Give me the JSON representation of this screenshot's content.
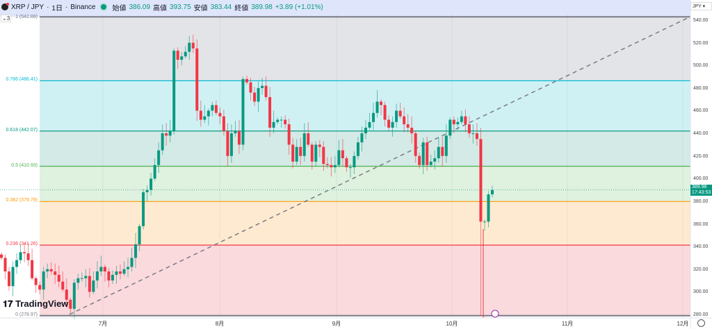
{
  "header": {
    "symbol": "XRP / JPY",
    "interval": "1日",
    "exchange": "Binance",
    "open_label": "始値",
    "open": "386.09",
    "high_label": "高値",
    "high": "393.75",
    "low_label": "安値",
    "low": "383.44",
    "close_label": "終値",
    "close": "389.98",
    "change": "+3.89 (+1.01%)"
  },
  "layers": {
    "count": "3"
  },
  "currency": "JPY",
  "last_price": {
    "price": "389.98",
    "countdown": "17:43:53"
  },
  "watermark": "TradingView",
  "colors": {
    "up": "#089981",
    "down": "#f23645"
  },
  "fib_levels": [
    {
      "label": "1 (542.88)",
      "value": 542.88,
      "color": "#787b86",
      "fill": "#e3e4e7"
    },
    {
      "label": "0.786 (486.41)",
      "value": 486.41,
      "color": "#00bcd4",
      "fill": "#cbeff3"
    },
    {
      "label": "0.618 (442.07)",
      "value": 442.07,
      "color": "#089981",
      "fill": "#cfe8e3"
    },
    {
      "label": "0.5 (410.93)",
      "value": 410.93,
      "color": "#4caf50",
      "fill": "#dcefdb"
    },
    {
      "label": "0.382 (379.79)",
      "value": 379.79,
      "color": "#ff9800",
      "fill": "#fee8cb"
    },
    {
      "label": "0.236 (341.26)",
      "value": 341.26,
      "color": "#f23645",
      "fill": "#fad6d9"
    },
    {
      "label": "0 (278.97)",
      "value": 278.97,
      "color": "#787b86",
      "fill": null
    }
  ],
  "chart_data": {
    "type": "candlestick",
    "y_ticks": [
      "540.00",
      "520.00",
      "500.00",
      "480.00",
      "460.00",
      "440.00",
      "420.00",
      "400.00",
      "380.00",
      "360.00",
      "340.00",
      "320.00",
      "300.00",
      "280.00"
    ],
    "ylim": [
      278,
      543
    ],
    "x_ticks": [
      "7月",
      "8月",
      "9月",
      "10月",
      "11月",
      "12月"
    ],
    "closes": [
      330,
      318,
      305,
      322,
      328,
      335,
      334,
      328,
      312,
      306,
      302,
      318,
      320,
      318,
      315,
      309,
      302,
      293,
      285,
      308,
      312,
      312,
      314,
      300,
      310,
      318,
      322,
      318,
      310,
      315,
      318,
      316,
      320,
      322,
      330,
      342,
      358,
      388,
      390,
      400,
      412,
      425,
      440,
      438,
      442,
      513,
      505,
      508,
      512,
      520,
      515,
      460,
      452,
      455,
      460,
      465,
      458,
      455,
      442,
      420,
      440,
      442,
      430,
      488,
      485,
      476,
      468,
      480,
      482,
      472,
      445,
      450,
      452,
      452,
      448,
      430,
      415,
      428,
      420,
      440,
      430,
      415,
      430,
      428,
      413,
      412,
      410,
      412,
      425,
      418,
      410,
      410,
      420,
      432,
      440,
      445,
      450,
      458,
      468,
      465,
      452,
      445,
      450,
      460,
      455,
      448,
      445,
      440,
      420,
      412,
      432,
      412,
      415,
      418,
      428,
      420,
      438,
      452,
      448,
      450,
      455,
      448,
      440,
      440,
      435,
      362,
      362,
      386.09,
      389.98
    ]
  }
}
